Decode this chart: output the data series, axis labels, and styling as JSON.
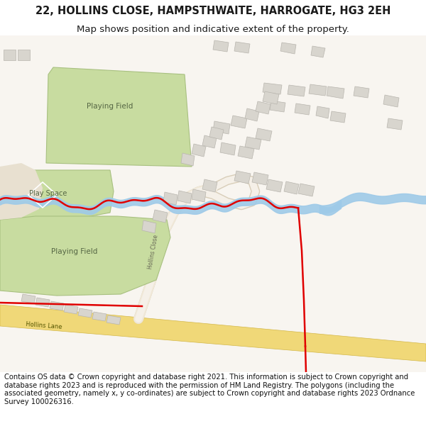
{
  "title": "22, HOLLINS CLOSE, HAMPSTHWAITE, HARROGATE, HG3 2EH",
  "subtitle": "Map shows position and indicative extent of the property.",
  "footer": "Contains OS data © Crown copyright and database right 2021. This information is subject to Crown copyright and database rights 2023 and is reproduced with the permission of HM Land Registry. The polygons (including the associated geometry, namely x, y co-ordinates) are subject to Crown copyright and database rights 2023 Ordnance Survey 100026316.",
  "title_fontsize": 10.5,
  "subtitle_fontsize": 9.5,
  "footer_fontsize": 7.2,
  "bg_color": "#ffffff",
  "map_bg": "#f5f2ee"
}
